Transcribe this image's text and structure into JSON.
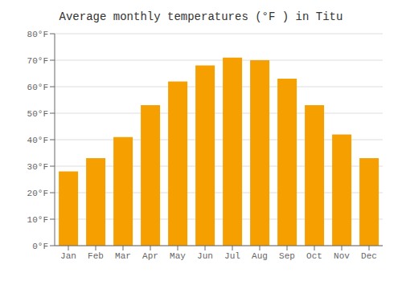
{
  "chart_data": {
    "type": "bar",
    "title": "Average monthly temperatures (°F ) in Titu",
    "categories": [
      "Jan",
      "Feb",
      "Mar",
      "Apr",
      "May",
      "Jun",
      "Jul",
      "Aug",
      "Sep",
      "Oct",
      "Nov",
      "Dec"
    ],
    "values": [
      28,
      33,
      41,
      53,
      62,
      68,
      71,
      70,
      63,
      53,
      42,
      33
    ],
    "color": "#F5A000",
    "ylim": [
      0,
      80
    ],
    "yticks": [
      {
        "value": 0,
        "label": "0°F"
      },
      {
        "value": 10,
        "label": "10°F"
      },
      {
        "value": 20,
        "label": "20°F"
      },
      {
        "value": 30,
        "label": "30°F"
      },
      {
        "value": 40,
        "label": "40°F"
      },
      {
        "value": 50,
        "label": "50°F"
      },
      {
        "value": 60,
        "label": "60°F"
      },
      {
        "value": 70,
        "label": "70°F"
      },
      {
        "value": 80,
        "label": "80°F"
      }
    ],
    "grid": true
  }
}
